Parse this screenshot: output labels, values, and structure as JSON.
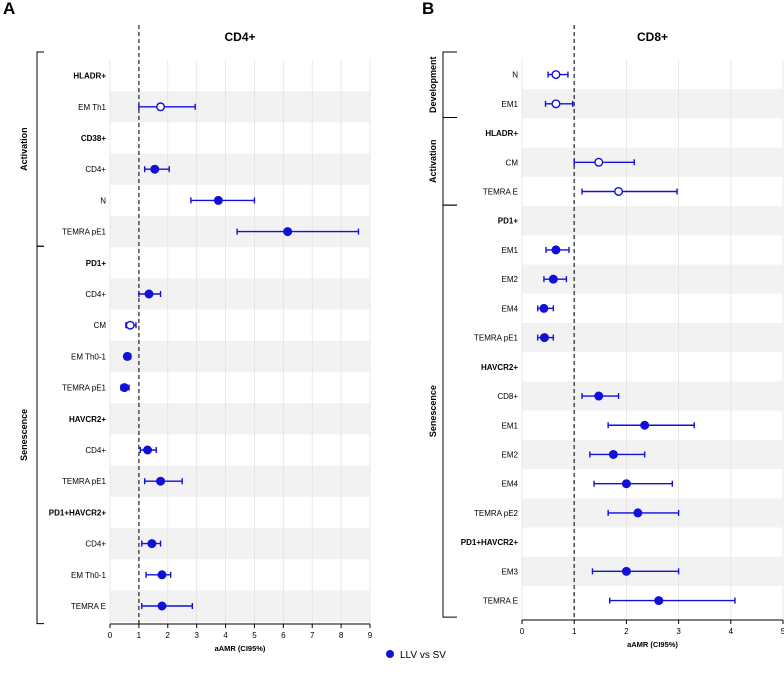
{
  "panel_letters": [
    "A",
    "B"
  ],
  "legend": {
    "label": "LLV vs SV",
    "color": "#1010d8"
  },
  "colors": {
    "point": "#1010d8",
    "stripe": "#f2f2f2",
    "grid": "#e2e2e2",
    "refline": "#333333"
  },
  "chart_data": [
    {
      "type": "forest",
      "panel": "A",
      "title": "CD4+",
      "xlabel": "aAMR (CI95%)",
      "xlim": [
        0,
        9
      ],
      "xticks": [
        0,
        1,
        2,
        3,
        4,
        5,
        6,
        7,
        8,
        9
      ],
      "reference_line": 1,
      "groups": [
        {
          "label": "Activation",
          "rows": [
            0,
            5
          ]
        },
        {
          "label": "Senescence",
          "rows": [
            6,
            17
          ]
        }
      ],
      "rows": [
        {
          "label": "HLADR+",
          "header": true
        },
        {
          "label": "EM Th1",
          "est": 1.75,
          "lo": 1.0,
          "hi": 2.95,
          "filled": false
        },
        {
          "label": "CD38+",
          "header": true
        },
        {
          "label": "CD4+",
          "est": 1.55,
          "lo": 1.2,
          "hi": 2.05,
          "filled": true
        },
        {
          "label": "N",
          "est": 3.75,
          "lo": 2.8,
          "hi": 5.0,
          "filled": true
        },
        {
          "label": "TEMRA pE1",
          "est": 6.15,
          "lo": 4.4,
          "hi": 8.6,
          "filled": true
        },
        {
          "label": "PD1+",
          "header": true
        },
        {
          "label": "CD4+",
          "est": 1.35,
          "lo": 1.0,
          "hi": 1.75,
          "filled": true
        },
        {
          "label": "CM",
          "est": 0.7,
          "lo": 0.55,
          "hi": 0.9,
          "filled": false
        },
        {
          "label": "EM Th0-1",
          "est": 0.6,
          "lo": 0.5,
          "hi": 0.72,
          "filled": true
        },
        {
          "label": "TEMRA pE1",
          "est": 0.5,
          "lo": 0.38,
          "hi": 0.66,
          "filled": true
        },
        {
          "label": "HAVCR2+",
          "header": true
        },
        {
          "label": "CD4+",
          "est": 1.3,
          "lo": 1.05,
          "hi": 1.6,
          "filled": true
        },
        {
          "label": "TEMRA pE1",
          "est": 1.75,
          "lo": 1.2,
          "hi": 2.5,
          "filled": true
        },
        {
          "label": "PD1+HAVCR2+",
          "header": true
        },
        {
          "label": "CD4+",
          "est": 1.45,
          "lo": 1.1,
          "hi": 1.75,
          "filled": true
        },
        {
          "label": "EM Th0-1",
          "est": 1.8,
          "lo": 1.25,
          "hi": 2.1,
          "filled": true
        },
        {
          "label": "TEMRA E",
          "est": 1.8,
          "lo": 1.1,
          "hi": 2.85,
          "filled": true
        }
      ]
    },
    {
      "type": "forest",
      "panel": "B",
      "title": "CD8+",
      "xlabel": "aAMR (CI95%)",
      "xlim": [
        0,
        5
      ],
      "xticks": [
        0,
        1,
        2,
        3,
        4,
        5
      ],
      "reference_line": 1,
      "groups": [
        {
          "label": "Development",
          "rows": [
            0,
            1
          ]
        },
        {
          "label": "Activation",
          "rows": [
            2,
            4
          ]
        },
        {
          "label": "Senescence",
          "rows": [
            5,
            18
          ]
        }
      ],
      "rows": [
        {
          "label": "N",
          "est": 0.65,
          "lo": 0.5,
          "hi": 0.88,
          "filled": false
        },
        {
          "label": "EM1",
          "est": 0.65,
          "lo": 0.45,
          "hi": 0.97,
          "filled": false
        },
        {
          "label": "HLADR+",
          "header": true
        },
        {
          "label": "CM",
          "est": 1.47,
          "lo": 1.0,
          "hi": 2.15,
          "filled": false
        },
        {
          "label": "TEMRA E",
          "est": 1.85,
          "lo": 1.15,
          "hi": 2.97,
          "filled": false
        },
        {
          "label": "PD1+",
          "header": true
        },
        {
          "label": "EM1",
          "est": 0.65,
          "lo": 0.46,
          "hi": 0.9,
          "filled": true
        },
        {
          "label": "EM2",
          "est": 0.6,
          "lo": 0.42,
          "hi": 0.85,
          "filled": true
        },
        {
          "label": "EM4",
          "est": 0.42,
          "lo": 0.3,
          "hi": 0.6,
          "filled": true
        },
        {
          "label": "TEMRA pE1",
          "est": 0.43,
          "lo": 0.3,
          "hi": 0.6,
          "filled": true
        },
        {
          "label": "HAVCR2+",
          "header": true
        },
        {
          "label": "CD8+",
          "est": 1.47,
          "lo": 1.15,
          "hi": 1.85,
          "filled": true
        },
        {
          "label": "EM1",
          "est": 2.35,
          "lo": 1.65,
          "hi": 3.3,
          "filled": true
        },
        {
          "label": "EM2",
          "est": 1.75,
          "lo": 1.3,
          "hi": 2.35,
          "filled": true
        },
        {
          "label": "EM4",
          "est": 2.0,
          "lo": 1.38,
          "hi": 2.88,
          "filled": true
        },
        {
          "label": "TEMRA pE2",
          "est": 2.22,
          "lo": 1.65,
          "hi": 3.0,
          "filled": true
        },
        {
          "label": "PD1+HAVCR2+",
          "header": true
        },
        {
          "label": "EM3",
          "est": 2.0,
          "lo": 1.35,
          "hi": 3.0,
          "filled": true
        },
        {
          "label": "TEMRA E",
          "est": 2.62,
          "lo": 1.68,
          "hi": 4.08,
          "filled": true
        }
      ]
    }
  ]
}
